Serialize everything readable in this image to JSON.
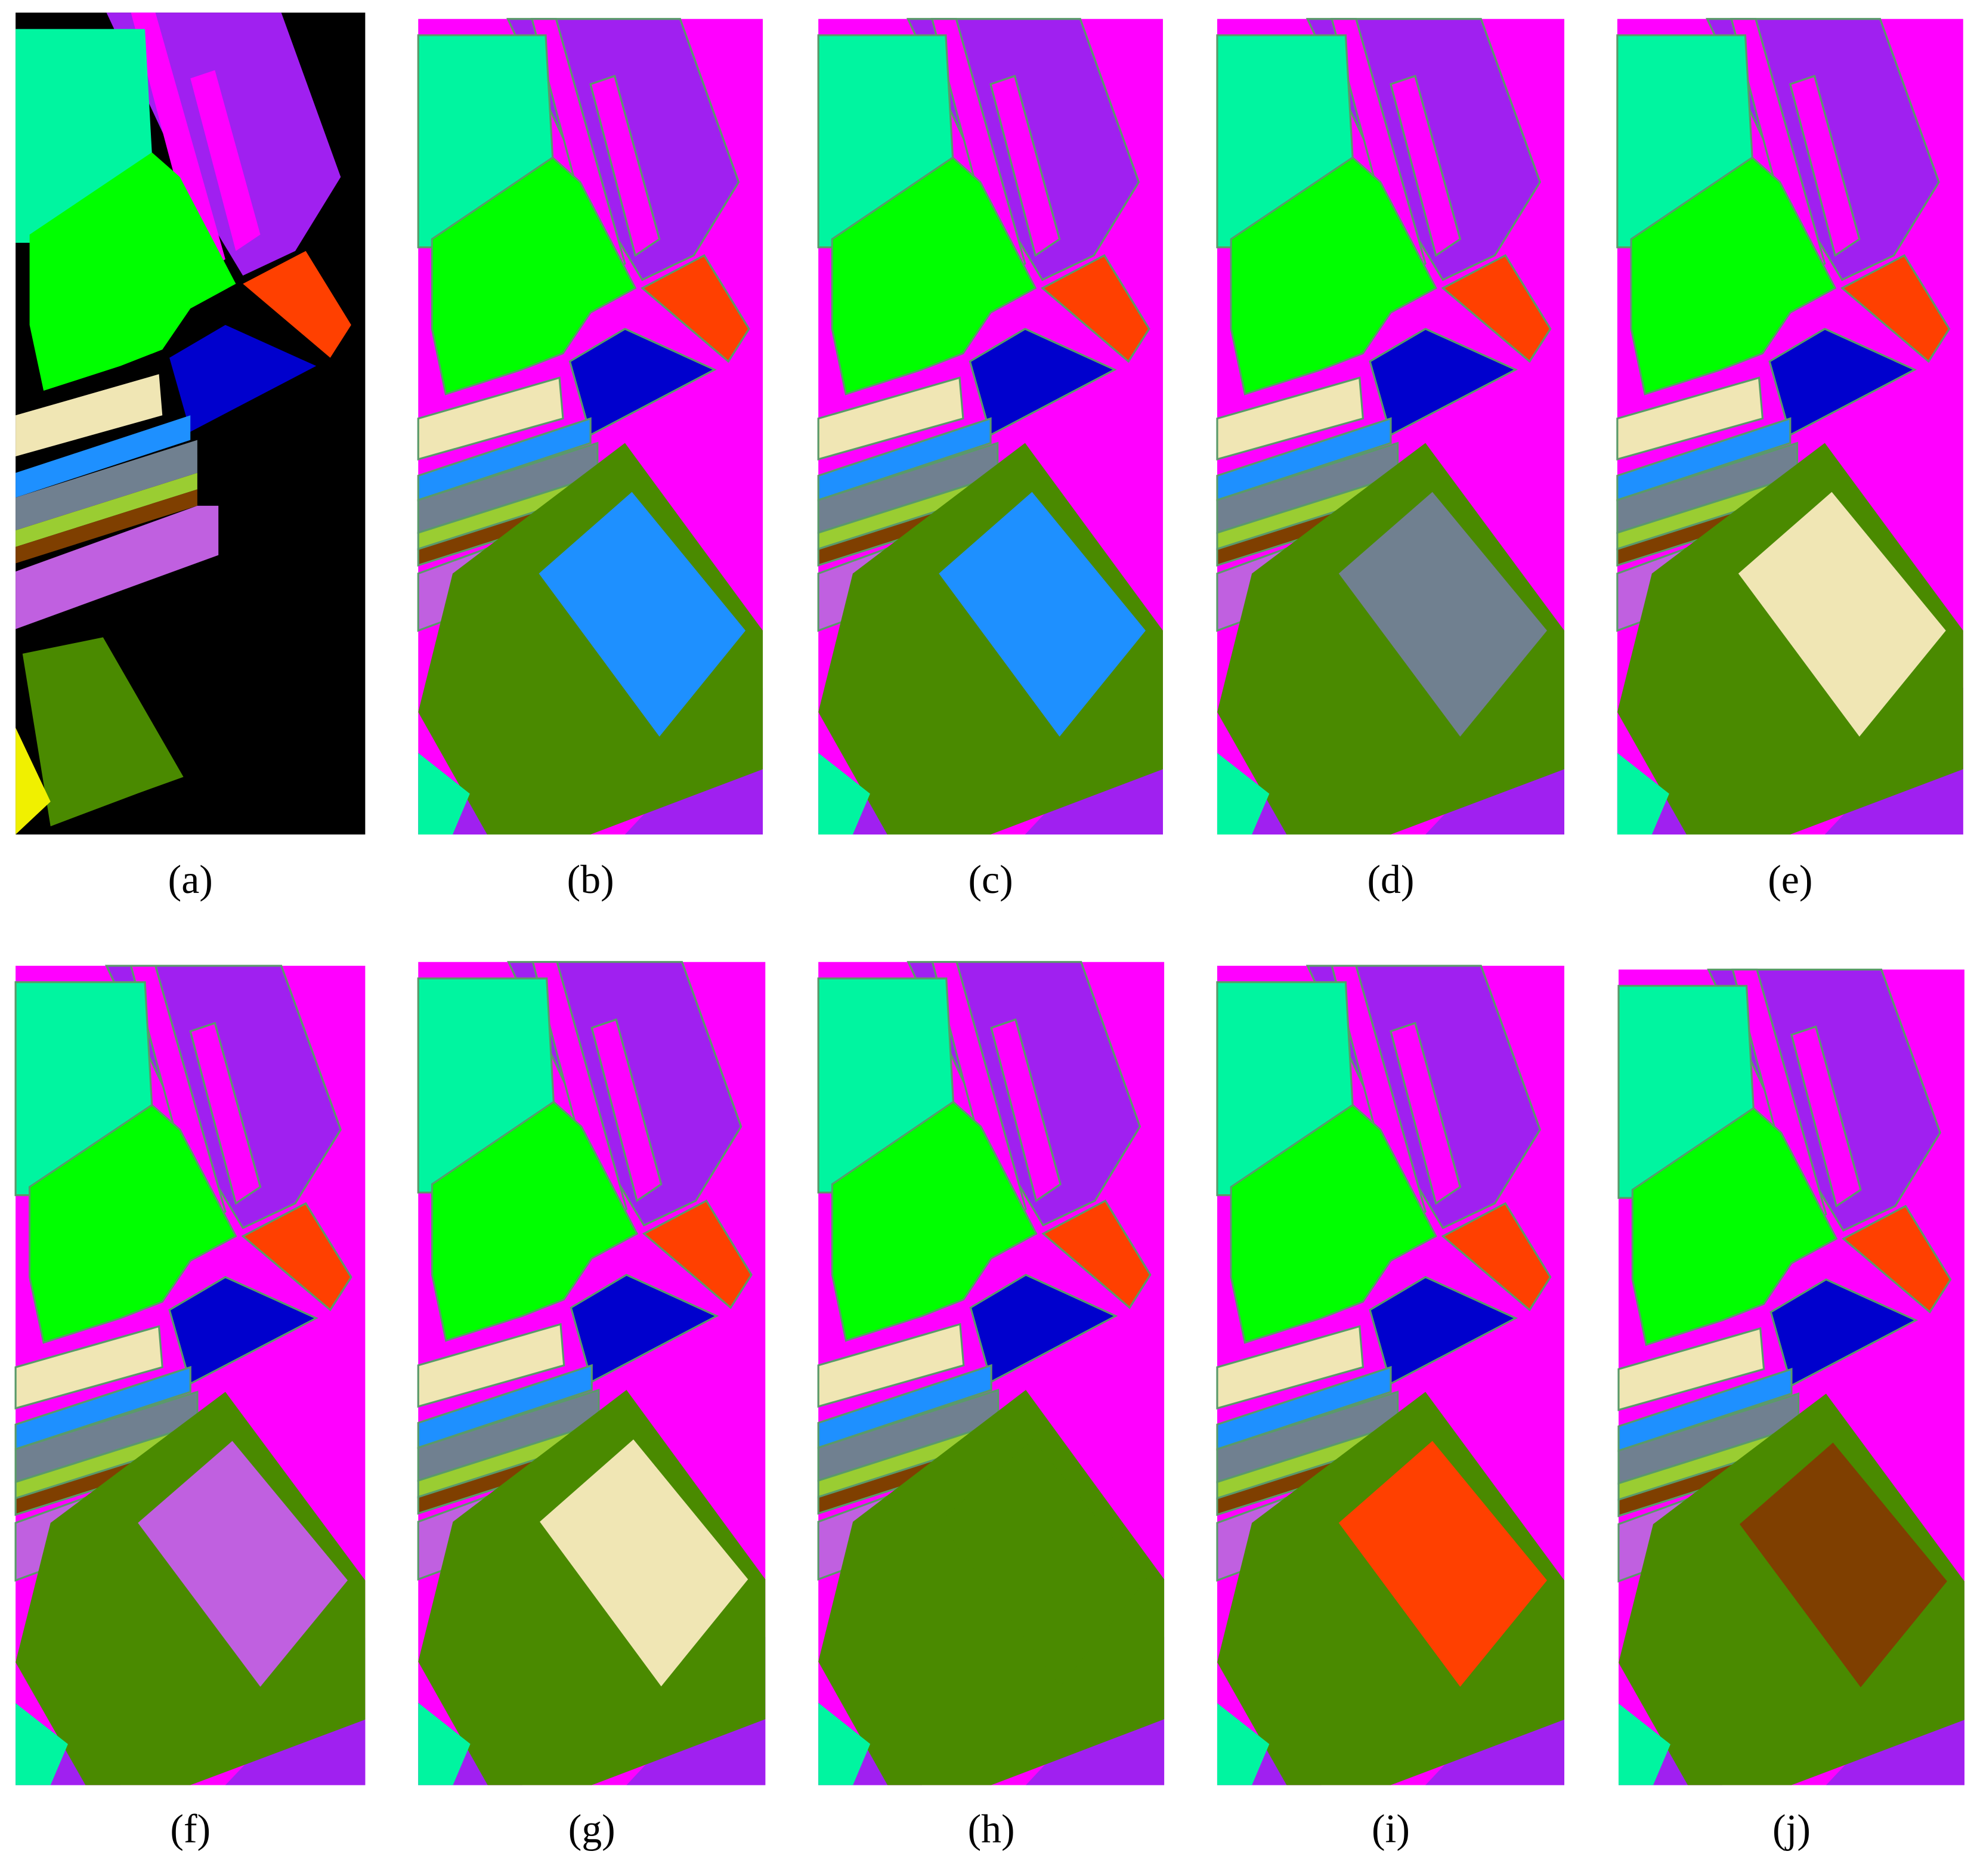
{
  "figure": {
    "panels": [
      {
        "label": "(a)"
      },
      {
        "label": "(b)"
      },
      {
        "label": "(c)"
      },
      {
        "label": "(d)"
      },
      {
        "label": "(e)"
      },
      {
        "label": "(f)"
      },
      {
        "label": "(g)"
      },
      {
        "label": "(h)"
      },
      {
        "label": "(i)"
      },
      {
        "label": "(j)"
      }
    ]
  }
}
